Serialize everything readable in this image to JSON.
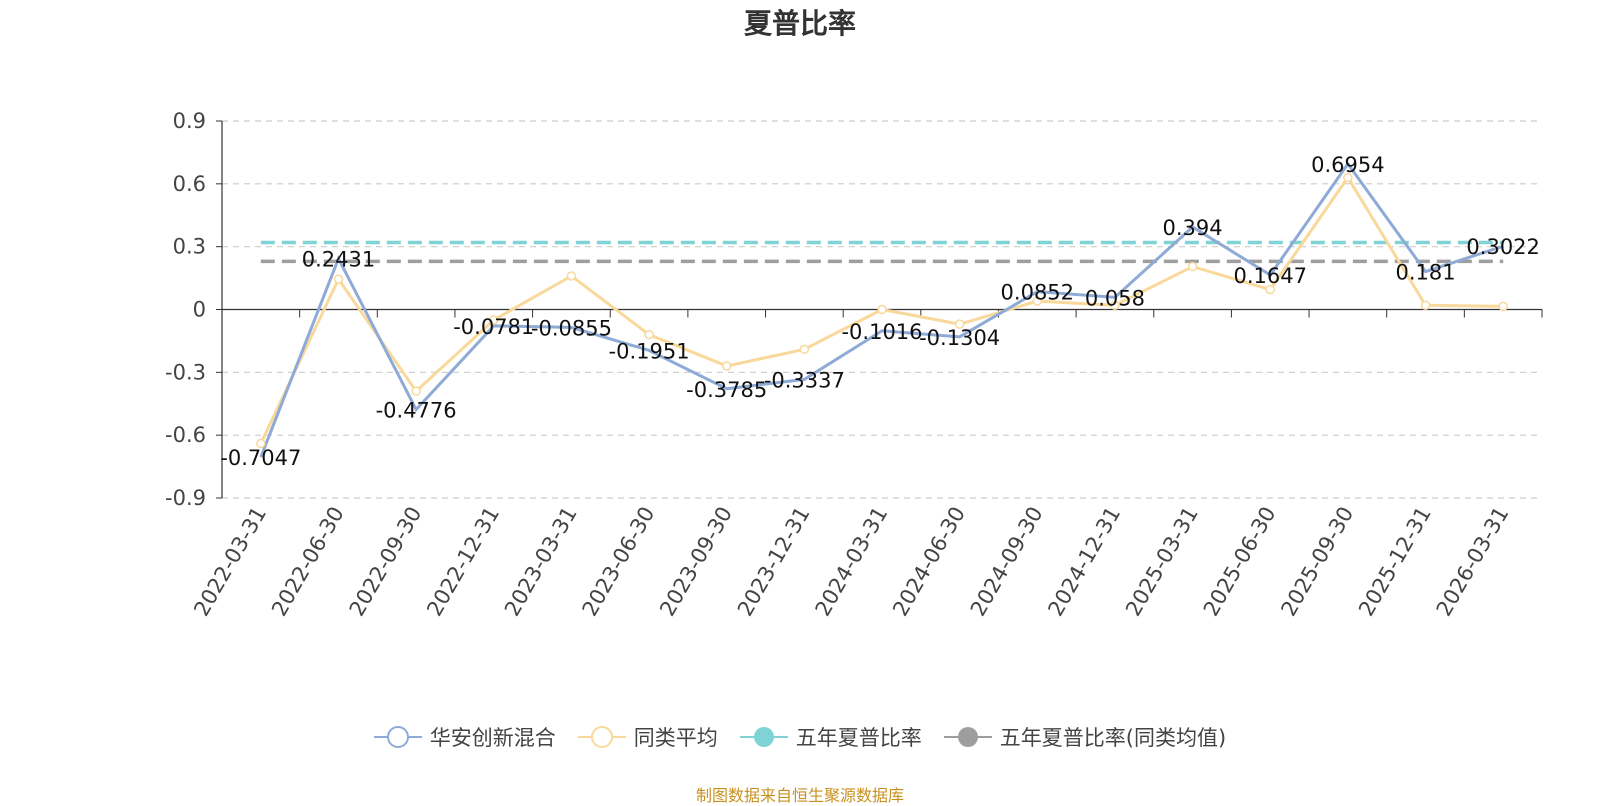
{
  "chart_data": {
    "type": "line",
    "title": "夏普比率",
    "categories": [
      "2022-03-31",
      "2022-06-30",
      "2022-09-30",
      "2022-12-31",
      "2023-03-31",
      "2023-06-30",
      "2023-09-30",
      "2023-12-31",
      "2024-03-31",
      "2024-06-30",
      "2024-09-30",
      "2024-12-31",
      "2025-03-31",
      "2025-06-30",
      "2025-09-30",
      "2025-12-31",
      "2026-03-31"
    ],
    "series": [
      {
        "name": "华安创新混合",
        "color": "#8eaad6",
        "values": [
          -0.7047,
          0.2431,
          -0.4776,
          -0.0781,
          -0.0855,
          -0.1951,
          -0.3785,
          -0.3337,
          -0.1016,
          -0.1304,
          0.0852,
          0.058,
          0.394,
          0.1647,
          0.6954,
          0.181,
          0.3022
        ],
        "labels": [
          "-0.7047",
          "0.2431",
          "-0.4776",
          "-0.0781",
          "-0.0855",
          "-0.1951",
          "-0.3785",
          "-0.3337",
          "-0.1016",
          "-0.1304",
          "0.0852",
          "0.058",
          "0.394",
          "0.1647",
          "0.6954",
          "0.181",
          "0.3022"
        ]
      },
      {
        "name": "同类平均",
        "color": "#f9d99b",
        "values": [
          -0.64,
          0.145,
          -0.39,
          -0.05,
          0.16,
          -0.12,
          -0.27,
          -0.19,
          0.0,
          -0.07,
          0.04,
          0.02,
          0.205,
          0.095,
          0.63,
          0.02,
          0.015
        ]
      },
      {
        "name": "五年夏普比率",
        "color": "#7fd3d4",
        "dashed": true,
        "value": 0.32
      },
      {
        "name": "五年夏普比率(同类均值)",
        "color": "#9e9e9e",
        "dashed": true,
        "value": 0.23
      }
    ],
    "ylim": [
      -0.9,
      0.9
    ],
    "yticks": [
      "0.9",
      "0.6",
      "0.3",
      "0",
      "-0.3",
      "-0.6",
      "-0.9"
    ],
    "ytick_values": [
      0.9,
      0.6,
      0.3,
      0,
      -0.3,
      -0.6,
      -0.9
    ],
    "grid": true,
    "legend": "bottom"
  },
  "source_note": "制图数据来自恒生聚源数据库"
}
